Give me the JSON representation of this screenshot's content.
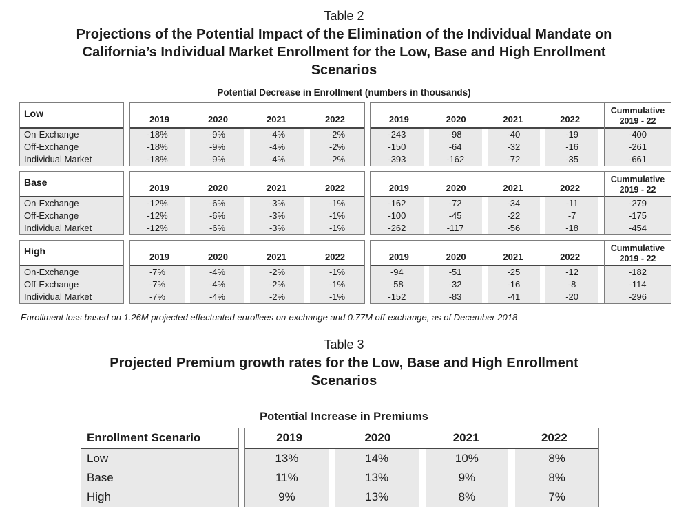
{
  "colors": {
    "row_gray": "#e9e9e9",
    "box_border": "#7d7d7d",
    "header_line": "#464646",
    "text": "#1c1c1c"
  },
  "table2": {
    "label": "Table 2",
    "title_lines": [
      "Projections of the Potential Impact of the Elimination of the Individual Mandate on",
      "California’s Individual Market Enrollment for the Low, Base and High Enrollment",
      "Scenarios"
    ],
    "subtitle": "Potential Decrease in Enrollment (numbers in thousands)",
    "years": [
      "2019",
      "2020",
      "2021",
      "2022"
    ],
    "cumulative_header_lines": [
      "Cummulative",
      "2019 - 22"
    ],
    "row_labels": [
      "On-Exchange",
      "Off-Exchange",
      "Individual Market"
    ],
    "sections": [
      {
        "name": "Low",
        "percent": [
          [
            "-18%",
            "-9%",
            "-4%",
            "-2%"
          ],
          [
            "-18%",
            "-9%",
            "-4%",
            "-2%"
          ],
          [
            "-18%",
            "-9%",
            "-4%",
            "-2%"
          ]
        ],
        "numbers": [
          [
            "-243",
            "-98",
            "-40",
            "-19"
          ],
          [
            "-150",
            "-64",
            "-32",
            "-16"
          ],
          [
            "-393",
            "-162",
            "-72",
            "-35"
          ]
        ],
        "cumulative": [
          "-400",
          "-261",
          "-661"
        ]
      },
      {
        "name": "Base",
        "percent": [
          [
            "-12%",
            "-6%",
            "-3%",
            "-1%"
          ],
          [
            "-12%",
            "-6%",
            "-3%",
            "-1%"
          ],
          [
            "-12%",
            "-6%",
            "-3%",
            "-1%"
          ]
        ],
        "numbers": [
          [
            "-162",
            "-72",
            "-34",
            "-11"
          ],
          [
            "-100",
            "-45",
            "-22",
            "-7"
          ],
          [
            "-262",
            "-117",
            "-56",
            "-18"
          ]
        ],
        "cumulative": [
          "-279",
          "-175",
          "-454"
        ]
      },
      {
        "name": "High",
        "percent": [
          [
            "-7%",
            "-4%",
            "-2%",
            "-1%"
          ],
          [
            "-7%",
            "-4%",
            "-2%",
            "-1%"
          ],
          [
            "-7%",
            "-4%",
            "-2%",
            "-1%"
          ]
        ],
        "numbers": [
          [
            "-94",
            "-51",
            "-25",
            "-12"
          ],
          [
            "-58",
            "-32",
            "-16",
            "-8"
          ],
          [
            "-152",
            "-83",
            "-41",
            "-20"
          ]
        ],
        "cumulative": [
          "-182",
          "-114",
          "-296"
        ]
      }
    ],
    "footnote": "Enrollment loss based on 1.26M projected effectuated enrollees on-exchange and 0.77M off-exchange, as of December 2018"
  },
  "table3": {
    "label": "Table 3",
    "title_lines": [
      "Projected Premium growth rates for the Low, Base and High Enrollment",
      "Scenarios"
    ],
    "subtitle": "Potential Increase in Premiums",
    "scenario_header": "Enrollment Scenario",
    "years": [
      "2019",
      "2020",
      "2021",
      "2022"
    ],
    "rows": [
      {
        "label": "Low",
        "values": [
          "13%",
          "14%",
          "10%",
          "8%"
        ]
      },
      {
        "label": "Base",
        "values": [
          "11%",
          "13%",
          "9%",
          "8%"
        ]
      },
      {
        "label": "High",
        "values": [
          "9%",
          "13%",
          "8%",
          "7%"
        ]
      }
    ]
  }
}
